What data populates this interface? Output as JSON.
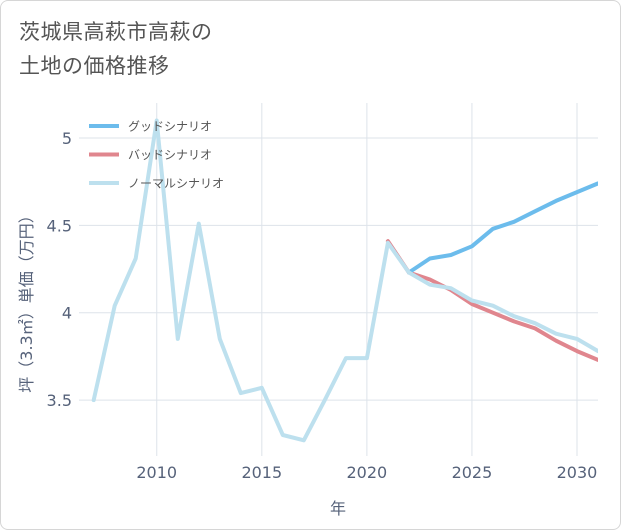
{
  "title_lines": [
    "茨城県高萩市高萩の",
    "土地の価格推移"
  ],
  "chart_data": {
    "type": "line",
    "title": "茨城県高萩市高萩の土地の価格推移",
    "xlabel": "年",
    "ylabel": "坪（3.3㎡）単価（万円）",
    "xlim": [
      2006.3,
      2031
    ],
    "ylim": [
      3.18,
      5.2
    ],
    "xticks": [
      2010,
      2015,
      2020,
      2025,
      2030
    ],
    "xtick_labels": [
      "2010",
      "2015",
      "2020",
      "2025",
      "2030"
    ],
    "yticks": [
      3.5,
      4,
      4.5,
      5
    ],
    "ytick_labels": [
      "3.5",
      "4",
      "4.5",
      "5"
    ],
    "grid": true,
    "legend_position": "top-left",
    "series": [
      {
        "name": "グッドシナリオ",
        "color": "#6cbcec",
        "x": [
          2022,
          2023,
          2024,
          2025,
          2026,
          2027,
          2028,
          2029,
          2030,
          2031
        ],
        "y": [
          4.23,
          4.31,
          4.33,
          4.38,
          4.48,
          4.52,
          4.58,
          4.64,
          4.69,
          4.74
        ]
      },
      {
        "name": "バッドシナリオ",
        "color": "#e0868e",
        "x": [
          2021,
          2022,
          2023,
          2024,
          2025,
          2026,
          2027,
          2028,
          2029,
          2030,
          2031
        ],
        "y": [
          4.41,
          4.23,
          4.19,
          4.13,
          4.05,
          4.0,
          3.95,
          3.91,
          3.84,
          3.78,
          3.73
        ]
      },
      {
        "name": "ノーマルシナリオ",
        "color": "#bde0ee",
        "x": [
          2007,
          2008,
          2009,
          2010,
          2011,
          2012,
          2013,
          2014,
          2015,
          2016,
          2017,
          2018,
          2019,
          2020,
          2021,
          2022,
          2023,
          2024,
          2025,
          2026,
          2027,
          2028,
          2029,
          2030,
          2031
        ],
        "y": [
          3.5,
          4.04,
          4.31,
          5.1,
          3.85,
          4.51,
          3.85,
          3.54,
          3.57,
          3.3,
          3.27,
          3.5,
          3.74,
          3.74,
          4.4,
          4.23,
          4.16,
          4.14,
          4.07,
          4.04,
          3.98,
          3.94,
          3.88,
          3.85,
          3.78
        ]
      }
    ]
  }
}
